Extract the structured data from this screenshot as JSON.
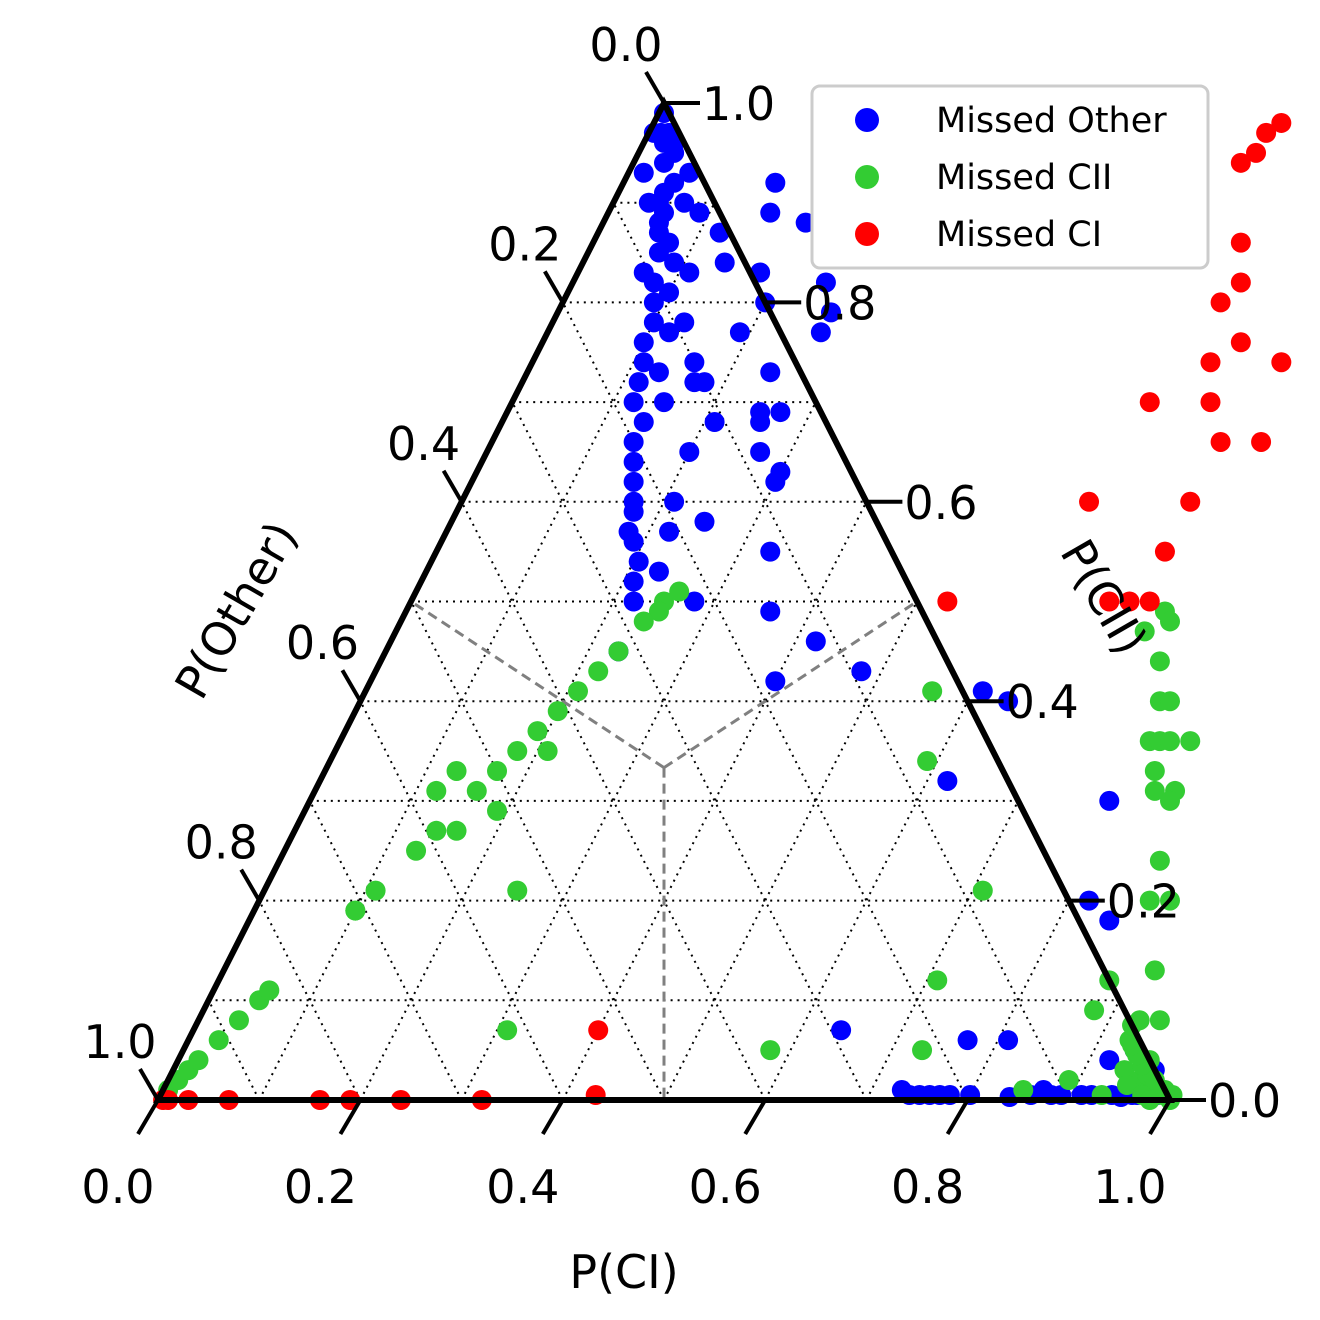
{
  "chart_data": {
    "type": "scatter",
    "subtype": "ternary",
    "axes": {
      "bottom": {
        "label": "P(CI)",
        "ticks": [
          "0.0",
          "0.2",
          "0.4",
          "0.6",
          "0.8",
          "1.0"
        ]
      },
      "right": {
        "label": "P(CII)",
        "ticks": [
          "0.0",
          "0.2",
          "0.4",
          "0.6",
          "0.8",
          "1.0"
        ]
      },
      "left": {
        "label": "P(Other)",
        "ticks": [
          "0.0",
          "0.2",
          "0.4",
          "0.6",
          "0.8",
          "1.0"
        ]
      }
    },
    "grid": true,
    "decision_boundaries": true,
    "legend": {
      "placement": "top-right"
    },
    "series": [
      {
        "name": "Missed Other",
        "color": "#0000ff",
        "points": [
          [
            0.005,
            0.99
          ],
          [
            0.012,
            0.97
          ],
          [
            0.02,
            0.96
          ],
          [
            0.03,
            0.94
          ],
          [
            0.015,
            0.93
          ],
          [
            0.045,
            0.91
          ],
          [
            0.035,
            0.9
          ],
          [
            0.055,
            0.88
          ],
          [
            0.06,
            0.87
          ],
          [
            0.07,
            0.85
          ],
          [
            0.065,
            0.83
          ],
          [
            0.08,
            0.82
          ],
          [
            0.09,
            0.8
          ],
          [
            0.1,
            0.78
          ],
          [
            0.1,
            0.76
          ],
          [
            0.11,
            0.74
          ],
          [
            0.115,
            0.72
          ],
          [
            0.12,
            0.7
          ],
          [
            0.14,
            0.68
          ],
          [
            0.14,
            0.66
          ],
          [
            0.15,
            0.64
          ],
          [
            0.16,
            0.62
          ],
          [
            0.17,
            0.6
          ],
          [
            0.175,
            0.59
          ],
          [
            0.18,
            0.57
          ],
          [
            0.19,
            0.56
          ],
          [
            0.205,
            0.54
          ],
          [
            0.21,
            0.52
          ],
          [
            0.22,
            0.5
          ],
          [
            0.06,
            0.93
          ],
          [
            0.09,
            0.89
          ],
          [
            0.14,
            0.84
          ],
          [
            0.19,
            0.77
          ],
          [
            0.21,
            0.68
          ],
          [
            0.33,
            0.55
          ],
          [
            0.4,
            0.42
          ],
          [
            0.42,
            0.46
          ],
          [
            0.23,
            0.45
          ],
          [
            0.28,
            0.5
          ],
          [
            0.36,
            0.49
          ],
          [
            0.3,
            0.62
          ],
          [
            0.3,
            0.63
          ],
          [
            0.25,
            0.69
          ],
          [
            0.24,
            0.73
          ],
          [
            0.18,
            0.83
          ],
          [
            0.2,
            0.8
          ],
          [
            0.16,
            0.89
          ],
          [
            0.27,
            0.69
          ],
          [
            0.03,
            0.96
          ],
          [
            0.07,
            0.9
          ],
          [
            0.11,
            0.83
          ],
          [
            0.13,
            0.78
          ],
          [
            0.17,
            0.72
          ],
          [
            0.21,
            0.6
          ],
          [
            0.16,
            0.74
          ],
          [
            0.23,
            0.53
          ],
          [
            0.25,
            0.58
          ],
          [
            0.2,
            0.65
          ],
          [
            0.15,
            0.7
          ],
          [
            0.045,
            0.9
          ],
          [
            0.09,
            0.84
          ],
          [
            0.02,
            0.97
          ],
          [
            0.035,
            0.95
          ],
          [
            0.05,
            0.92
          ],
          [
            0.055,
            0.89
          ],
          [
            0.075,
            0.86
          ],
          [
            0.1,
            0.81
          ],
          [
            0.12,
            0.77
          ],
          [
            0.13,
            0.73
          ],
          [
            0.22,
            0.57
          ],
          [
            0.27,
            0.65
          ],
          [
            0.255,
            0.68
          ],
          [
            0.18,
            0.72
          ],
          [
            0.12,
            0.87
          ],
          [
            0.2,
            0.88
          ],
          [
            0.15,
            0.92
          ],
          [
            0.27,
            0.77
          ],
          [
            0.25,
            0.82
          ],
          [
            0.27,
            0.79
          ],
          [
            0.005,
            0.97
          ],
          [
            0.48,
            0.43
          ],
          [
            0.62,
            0.32
          ],
          [
            0.61,
            0.41
          ],
          [
            0.64,
            0.4
          ],
          [
            0.79,
            0.3
          ],
          [
            0.82,
            0.2
          ],
          [
            0.85,
            0.18
          ],
          [
            0.64,
            0.07
          ],
          [
            0.77,
            0.06
          ],
          [
            0.81,
            0.06
          ],
          [
            0.86,
            0.005
          ],
          [
            0.88,
            0.005
          ],
          [
            0.91,
            0.005
          ],
          [
            0.92,
            0.005
          ],
          [
            0.94,
            0.005
          ],
          [
            0.96,
            0.005
          ],
          [
            0.985,
            0.005
          ],
          [
            0.97,
            0.03
          ],
          [
            0.98,
            0.01
          ],
          [
            0.95,
            0.003
          ],
          [
            0.89,
            0.005
          ],
          [
            0.87,
            0.01
          ],
          [
            0.92,
            0.04
          ],
          [
            0.96,
            0.03
          ],
          [
            0.73,
            0.01
          ],
          [
            0.74,
            0.005
          ],
          [
            0.75,
            0.005
          ],
          [
            0.76,
            0.005
          ],
          [
            0.77,
            0.005
          ],
          [
            0.78,
            0.005
          ],
          [
            0.8,
            0.005
          ],
          [
            0.84,
            0.003
          ],
          [
            0.975,
            0.015
          ],
          [
            0.965,
            0.005
          ],
          [
            0.94,
            0.05
          ]
        ]
      },
      {
        "name": "Missed CII",
        "color": "#33cc33",
        "points": [
          [
            0.005,
            0.01
          ],
          [
            0.01,
            0.02
          ],
          [
            0.015,
            0.03
          ],
          [
            0.02,
            0.04
          ],
          [
            0.03,
            0.06
          ],
          [
            0.04,
            0.08
          ],
          [
            0.05,
            0.1
          ],
          [
            0.055,
            0.11
          ],
          [
            0.1,
            0.19
          ],
          [
            0.11,
            0.21
          ],
          [
            0.13,
            0.25
          ],
          [
            0.14,
            0.27
          ],
          [
            0.17,
            0.33
          ],
          [
            0.18,
            0.35
          ],
          [
            0.19,
            0.37
          ],
          [
            0.2,
            0.39
          ],
          [
            0.21,
            0.41
          ],
          [
            0.22,
            0.43
          ],
          [
            0.23,
            0.45
          ],
          [
            0.25,
            0.5
          ],
          [
            0.25,
            0.49
          ],
          [
            0.26,
            0.51
          ],
          [
            0.24,
            0.48
          ],
          [
            0.21,
            0.35
          ],
          [
            0.13,
            0.33
          ],
          [
            0.12,
            0.31
          ],
          [
            0.19,
            0.29
          ],
          [
            0.16,
            0.31
          ],
          [
            0.16,
            0.27
          ],
          [
            0.25,
            0.21
          ],
          [
            0.1,
            0.19
          ],
          [
            0.31,
            0.07
          ],
          [
            0.58,
            0.05
          ],
          [
            0.71,
            0.12
          ],
          [
            0.71,
            0.21
          ],
          [
            0.59,
            0.34
          ],
          [
            0.56,
            0.41
          ],
          [
            0.73,
            0.05
          ],
          [
            0.75,
            0.49
          ],
          [
            0.76,
            0.48
          ],
          [
            0.74,
            0.47
          ],
          [
            0.77,
            0.44
          ],
          [
            0.79,
            0.4
          ],
          [
            0.8,
            0.4
          ],
          [
            0.8,
            0.36
          ],
          [
            0.81,
            0.36
          ],
          [
            0.82,
            0.36
          ],
          [
            0.84,
            0.36
          ],
          [
            0.82,
            0.33
          ],
          [
            0.83,
            0.31
          ],
          [
            0.85,
            0.31
          ],
          [
            0.85,
            0.3
          ],
          [
            0.87,
            0.24
          ],
          [
            0.88,
            0.2
          ],
          [
            0.9,
            0.2
          ],
          [
            0.92,
            0.13
          ],
          [
            0.88,
            0.12
          ],
          [
            0.88,
            0.09
          ],
          [
            0.93,
            0.08
          ],
          [
            0.95,
            0.08
          ],
          [
            0.93,
            0.06
          ],
          [
            0.94,
            0.05
          ],
          [
            0.96,
            0.04
          ],
          [
            0.96,
            0.03
          ],
          [
            0.97,
            0.02
          ],
          [
            0.98,
            0.01
          ],
          [
            0.99,
            0.005
          ],
          [
            1.0,
            0.005
          ],
          [
            1.0,
            0.0
          ],
          [
            0.96,
            0.02
          ],
          [
            0.94,
            0.03
          ],
          [
            0.95,
            0.015
          ],
          [
            0.85,
            0.01
          ],
          [
            0.89,
            0.02
          ],
          [
            0.97,
            0.005
          ],
          [
            0.99,
            0.01
          ],
          [
            0.965,
            0.025
          ],
          [
            0.975,
            0.02
          ],
          [
            0.955,
            0.035
          ],
          [
            0.93,
            0.005
          ],
          [
            0.98,
            0.0
          ],
          [
            0.945,
            0.045
          ],
          [
            0.935,
            0.055
          ],
          [
            0.925,
            0.075
          ]
        ]
      },
      {
        "name": "Missed CI",
        "color": "#ff0000",
        "points": [
          [
            0.005,
            0.0
          ],
          [
            0.01,
            0.0
          ],
          [
            0.03,
            0.0
          ],
          [
            0.07,
            0.0
          ],
          [
            0.16,
            0.0
          ],
          [
            0.19,
            0.0
          ],
          [
            0.24,
            0.0
          ],
          [
            0.32,
            0.0
          ],
          [
            0.43,
            0.005
          ],
          [
            0.4,
            0.07
          ],
          [
            0.53,
            0.5
          ],
          [
            0.62,
            0.6
          ],
          [
            0.69,
            0.5
          ],
          [
            0.71,
            0.5
          ],
          [
            0.73,
            0.5
          ],
          [
            0.63,
            0.7
          ],
          [
            0.72,
            0.6
          ],
          [
            0.72,
            0.66
          ],
          [
            0.69,
            0.76
          ],
          [
            0.76,
            0.66
          ],
          [
            0.67,
            0.74
          ],
          [
            0.65,
            0.8
          ],
          [
            0.64,
            0.86
          ],
          [
            0.6,
            0.94
          ],
          [
            0.62,
            0.98
          ],
          [
            0.61,
            0.97
          ],
          [
            0.61,
            0.95
          ],
          [
            0.55,
            0.93
          ],
          [
            0.66,
            0.82
          ],
          [
            0.72,
            0.55
          ],
          [
            0.74,
            0.74
          ],
          [
            0.69,
            0.7
          ]
        ]
      }
    ]
  }
}
